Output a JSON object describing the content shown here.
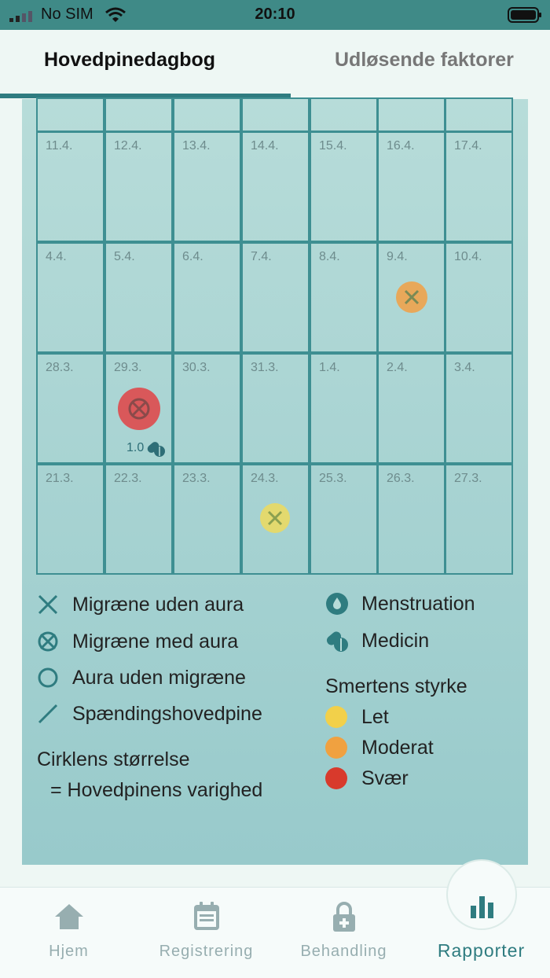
{
  "status_bar": {
    "carrier": "No SIM",
    "time": "20:10"
  },
  "tabs": [
    {
      "label": "Hovedpinedagbog",
      "active": true
    },
    {
      "label": "Udløsende faktorer",
      "active": false
    }
  ],
  "calendar": {
    "weeks": [
      {
        "days": [
          "",
          "",
          "",
          "",
          "",
          "",
          ""
        ]
      },
      {
        "days": [
          "11.4.",
          "12.4.",
          "13.4.",
          "14.4.",
          "15.4.",
          "16.4.",
          "17.4."
        ]
      },
      {
        "days": [
          "4.4.",
          "5.4.",
          "6.4.",
          "7.4.",
          "8.4.",
          "9.4.",
          "10.4."
        ]
      },
      {
        "days": [
          "28.3.",
          "29.3.",
          "30.3.",
          "31.3.",
          "1.4.",
          "2.4.",
          "3.4."
        ]
      },
      {
        "days": [
          "21.3.",
          "22.3.",
          "23.3.",
          "24.3.",
          "25.3.",
          "26.3.",
          "27.3."
        ]
      }
    ],
    "entries": [
      {
        "date": "9.4.",
        "type": "Migræne uden aura",
        "severity": "Moderat",
        "color": "#e8a85a"
      },
      {
        "date": "29.3.",
        "type": "Migræne med aura",
        "severity": "Svær",
        "color": "#d9585a",
        "medicine_dose": "1.0"
      },
      {
        "date": "24.3.",
        "type": "Migræne uden aura",
        "severity": "Let",
        "color": "#e3d96e"
      }
    ]
  },
  "legend": {
    "types": [
      {
        "label": "Migræne uden aura",
        "icon": "x-icon"
      },
      {
        "label": "Migræne med aura",
        "icon": "circle-x-icon"
      },
      {
        "label": "Aura uden migræne",
        "icon": "circle-icon"
      },
      {
        "label": "Spændingshovedpine",
        "icon": "slash-icon"
      }
    ],
    "extras": [
      {
        "label": "Menstruation",
        "icon": "drop-icon"
      },
      {
        "label": "Medicin",
        "icon": "pills-icon"
      }
    ],
    "size_title": "Cirklens størrelse",
    "size_desc": "= Hovedpinens varighed",
    "severity_title": "Smertens styrke",
    "severity": [
      {
        "label": "Let",
        "color": "#f2d04a"
      },
      {
        "label": "Moderat",
        "color": "#f0a140"
      },
      {
        "label": "Svær",
        "color": "#d83a2c"
      }
    ]
  },
  "nav": [
    {
      "label": "Hjem",
      "icon": "home-icon",
      "active": false
    },
    {
      "label": "Registrering",
      "icon": "calendar-icon",
      "active": false
    },
    {
      "label": "Behandling",
      "icon": "lock-icon",
      "active": false
    },
    {
      "label": "Rapporter",
      "icon": "bar-chart-icon",
      "active": true
    }
  ],
  "colors": {
    "accent": "#2f7c80",
    "status_bar": "#3f8a87",
    "panel": "#a8d3d2"
  }
}
